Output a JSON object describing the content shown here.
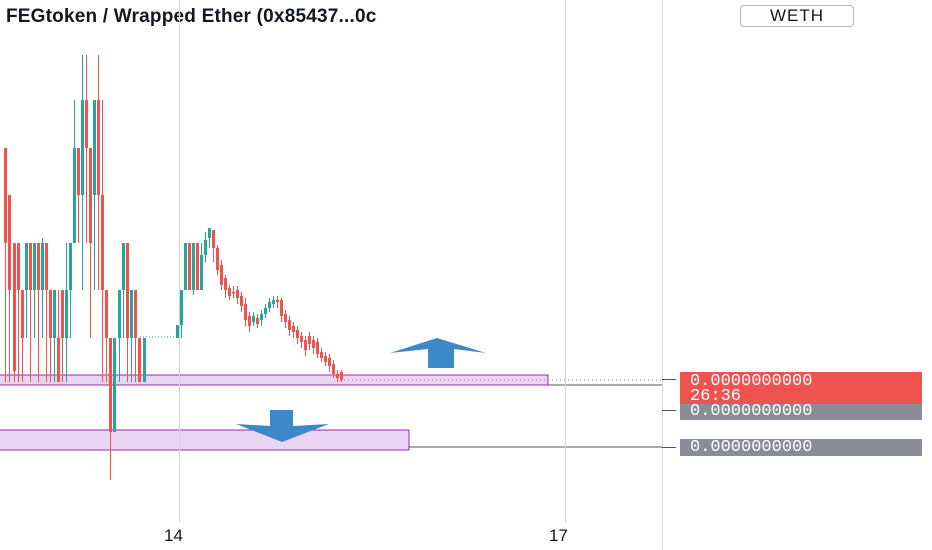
{
  "header": {
    "title": "FEGtoken / Wrapped Ether (0x85437...0c",
    "quote_badge": "WETH"
  },
  "price_scale": {
    "last_price": "0.0000000000",
    "countdown": "26:36",
    "line1_price": "0.0000000000",
    "line2_price": "0.0000000000"
  },
  "time_axis": {
    "labels": [
      "14",
      "17"
    ]
  },
  "colors": {
    "up": "#26a69a",
    "down": "#ef5350",
    "zone_fill": "#e9d5f2",
    "zone_border": "#9c27b0",
    "arrow": "#3d88c9"
  },
  "annotations": {
    "up_arrow": "arrow-up-icon",
    "down_arrow": "arrow-down-icon"
  }
}
